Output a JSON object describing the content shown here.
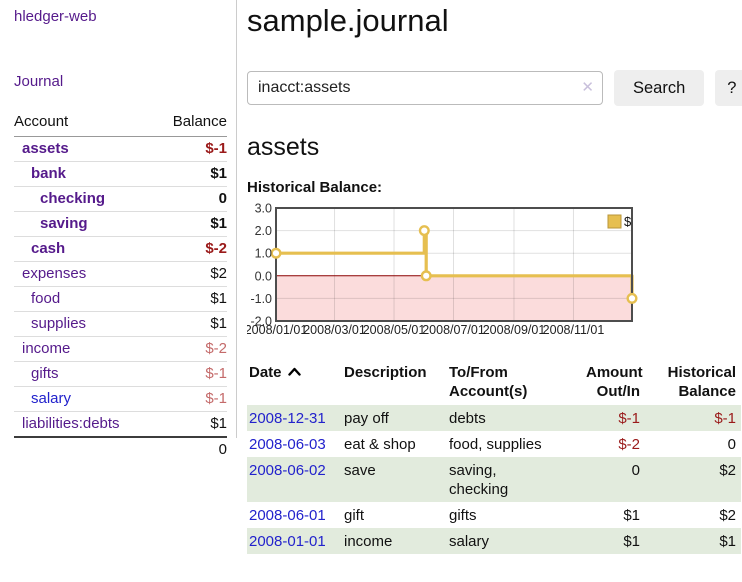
{
  "sidebar": {
    "brand": "hledger-web",
    "nav": {
      "journal_label": "Journal"
    },
    "accounts_table": {
      "col_account": "Account",
      "col_balance": "Balance",
      "rows": [
        {
          "name": "assets",
          "depth": 1,
          "bold": true,
          "balance": "$-1",
          "balance_color": "negative"
        },
        {
          "name": "bank",
          "depth": 2,
          "bold": true,
          "balance": "$1"
        },
        {
          "name": "checking",
          "depth": 3,
          "bold": true,
          "balance": "0"
        },
        {
          "name": "saving",
          "depth": 3,
          "bold": true,
          "balance": "$1"
        },
        {
          "name": "cash",
          "depth": 2,
          "bold": true,
          "balance": "$-2",
          "balance_color": "negative"
        },
        {
          "name": "expenses",
          "depth": 1,
          "bold": false,
          "balance": "$2"
        },
        {
          "name": "food",
          "depth": 2,
          "bold": false,
          "balance": "$1"
        },
        {
          "name": "supplies",
          "depth": 2,
          "bold": false,
          "balance": "$1"
        },
        {
          "name": "income",
          "depth": 1,
          "bold": false,
          "balance": "$-2",
          "balance_color": "rose"
        },
        {
          "name": "gifts",
          "depth": 2,
          "bold": false,
          "balance": "$-1",
          "balance_color": "rose"
        },
        {
          "name": "salary",
          "depth": 2,
          "bold": false,
          "balance": "$-1",
          "balance_color": "rose",
          "name_color": "blue"
        },
        {
          "name": "liabilities:debts",
          "depth": 1,
          "bold": false,
          "balance": "$1"
        }
      ],
      "total": "0"
    }
  },
  "header": {
    "title": "sample.journal"
  },
  "search": {
    "value": "inacct:assets",
    "clear_icon": "✕",
    "button_label": "Search",
    "help_label": "?"
  },
  "account_page": {
    "heading": "assets",
    "chart_label": "Historical Balance:"
  },
  "chart_data": {
    "type": "line",
    "step": "after",
    "title": "Historical Balance:",
    "x": [
      "2008-01-01",
      "2008-06-01",
      "2008-06-03",
      "2008-12-31"
    ],
    "values": [
      1.0,
      2.0,
      0.0,
      -1.0
    ],
    "x_range": [
      "2008-01-01",
      "2008-12-31"
    ],
    "ylim": [
      -2.0,
      3.0
    ],
    "y_ticks": [
      3.0,
      2.0,
      1.0,
      0.0,
      -1.0,
      -2.0
    ],
    "x_tick_dates": [
      "2008-01-01",
      "2008-03-01",
      "2008-05-01",
      "2008-07-01",
      "2008-09-01",
      "2008-11-01"
    ],
    "x_ticks": [
      "2008/01/01",
      "2008/03/01",
      "2008/05/01",
      "2008/07/01",
      "2008/09/01",
      "2008/11/01"
    ],
    "grid": true,
    "legend": [
      {
        "label": "$",
        "color": "#e6bf50"
      }
    ],
    "legend_position": "top-right",
    "line_color": "#e6bf50",
    "legend_swatch_border": "#b8953a",
    "negative_region_fill": "#fbdcdc",
    "zero_line_color": "#8b0000"
  },
  "register": {
    "columns": {
      "date": "Date",
      "description": "Description",
      "accounts": "To/From Account(s)",
      "amount": "Amount Out/In",
      "balance": "Historical Balance"
    },
    "sort": {
      "column": "date",
      "direction": "ascending"
    },
    "rows": [
      {
        "date": "2008-12-31",
        "description": "pay off",
        "accounts": "debts",
        "amount": "$-1",
        "amount_negative": true,
        "balance": "$-1",
        "balance_negative": true
      },
      {
        "date": "2008-06-03",
        "description": "eat & shop",
        "accounts": "food, supplies",
        "amount": "$-2",
        "amount_negative": true,
        "balance": "0",
        "balance_negative": false
      },
      {
        "date": "2008-06-02",
        "description": "save",
        "accounts": "saving,\nchecking",
        "amount": "0",
        "amount_negative": false,
        "balance": "$2",
        "balance_negative": false
      },
      {
        "date": "2008-06-01",
        "description": "gift",
        "accounts": "gifts",
        "amount": "$1",
        "amount_negative": false,
        "balance": "$2",
        "balance_negative": false
      },
      {
        "date": "2008-01-01",
        "description": "income",
        "accounts": "salary",
        "amount": "$1",
        "amount_negative": false,
        "balance": "$1",
        "balance_negative": false
      }
    ]
  },
  "colors": {
    "link_blue": "#2222cc",
    "link_visited_purple": "#551a8b",
    "negative_red": "#9a1a1a",
    "negative_muted_rose": "#c46a6a",
    "row_green": "#e2ebdd",
    "button_gray": "#eeeeee"
  }
}
